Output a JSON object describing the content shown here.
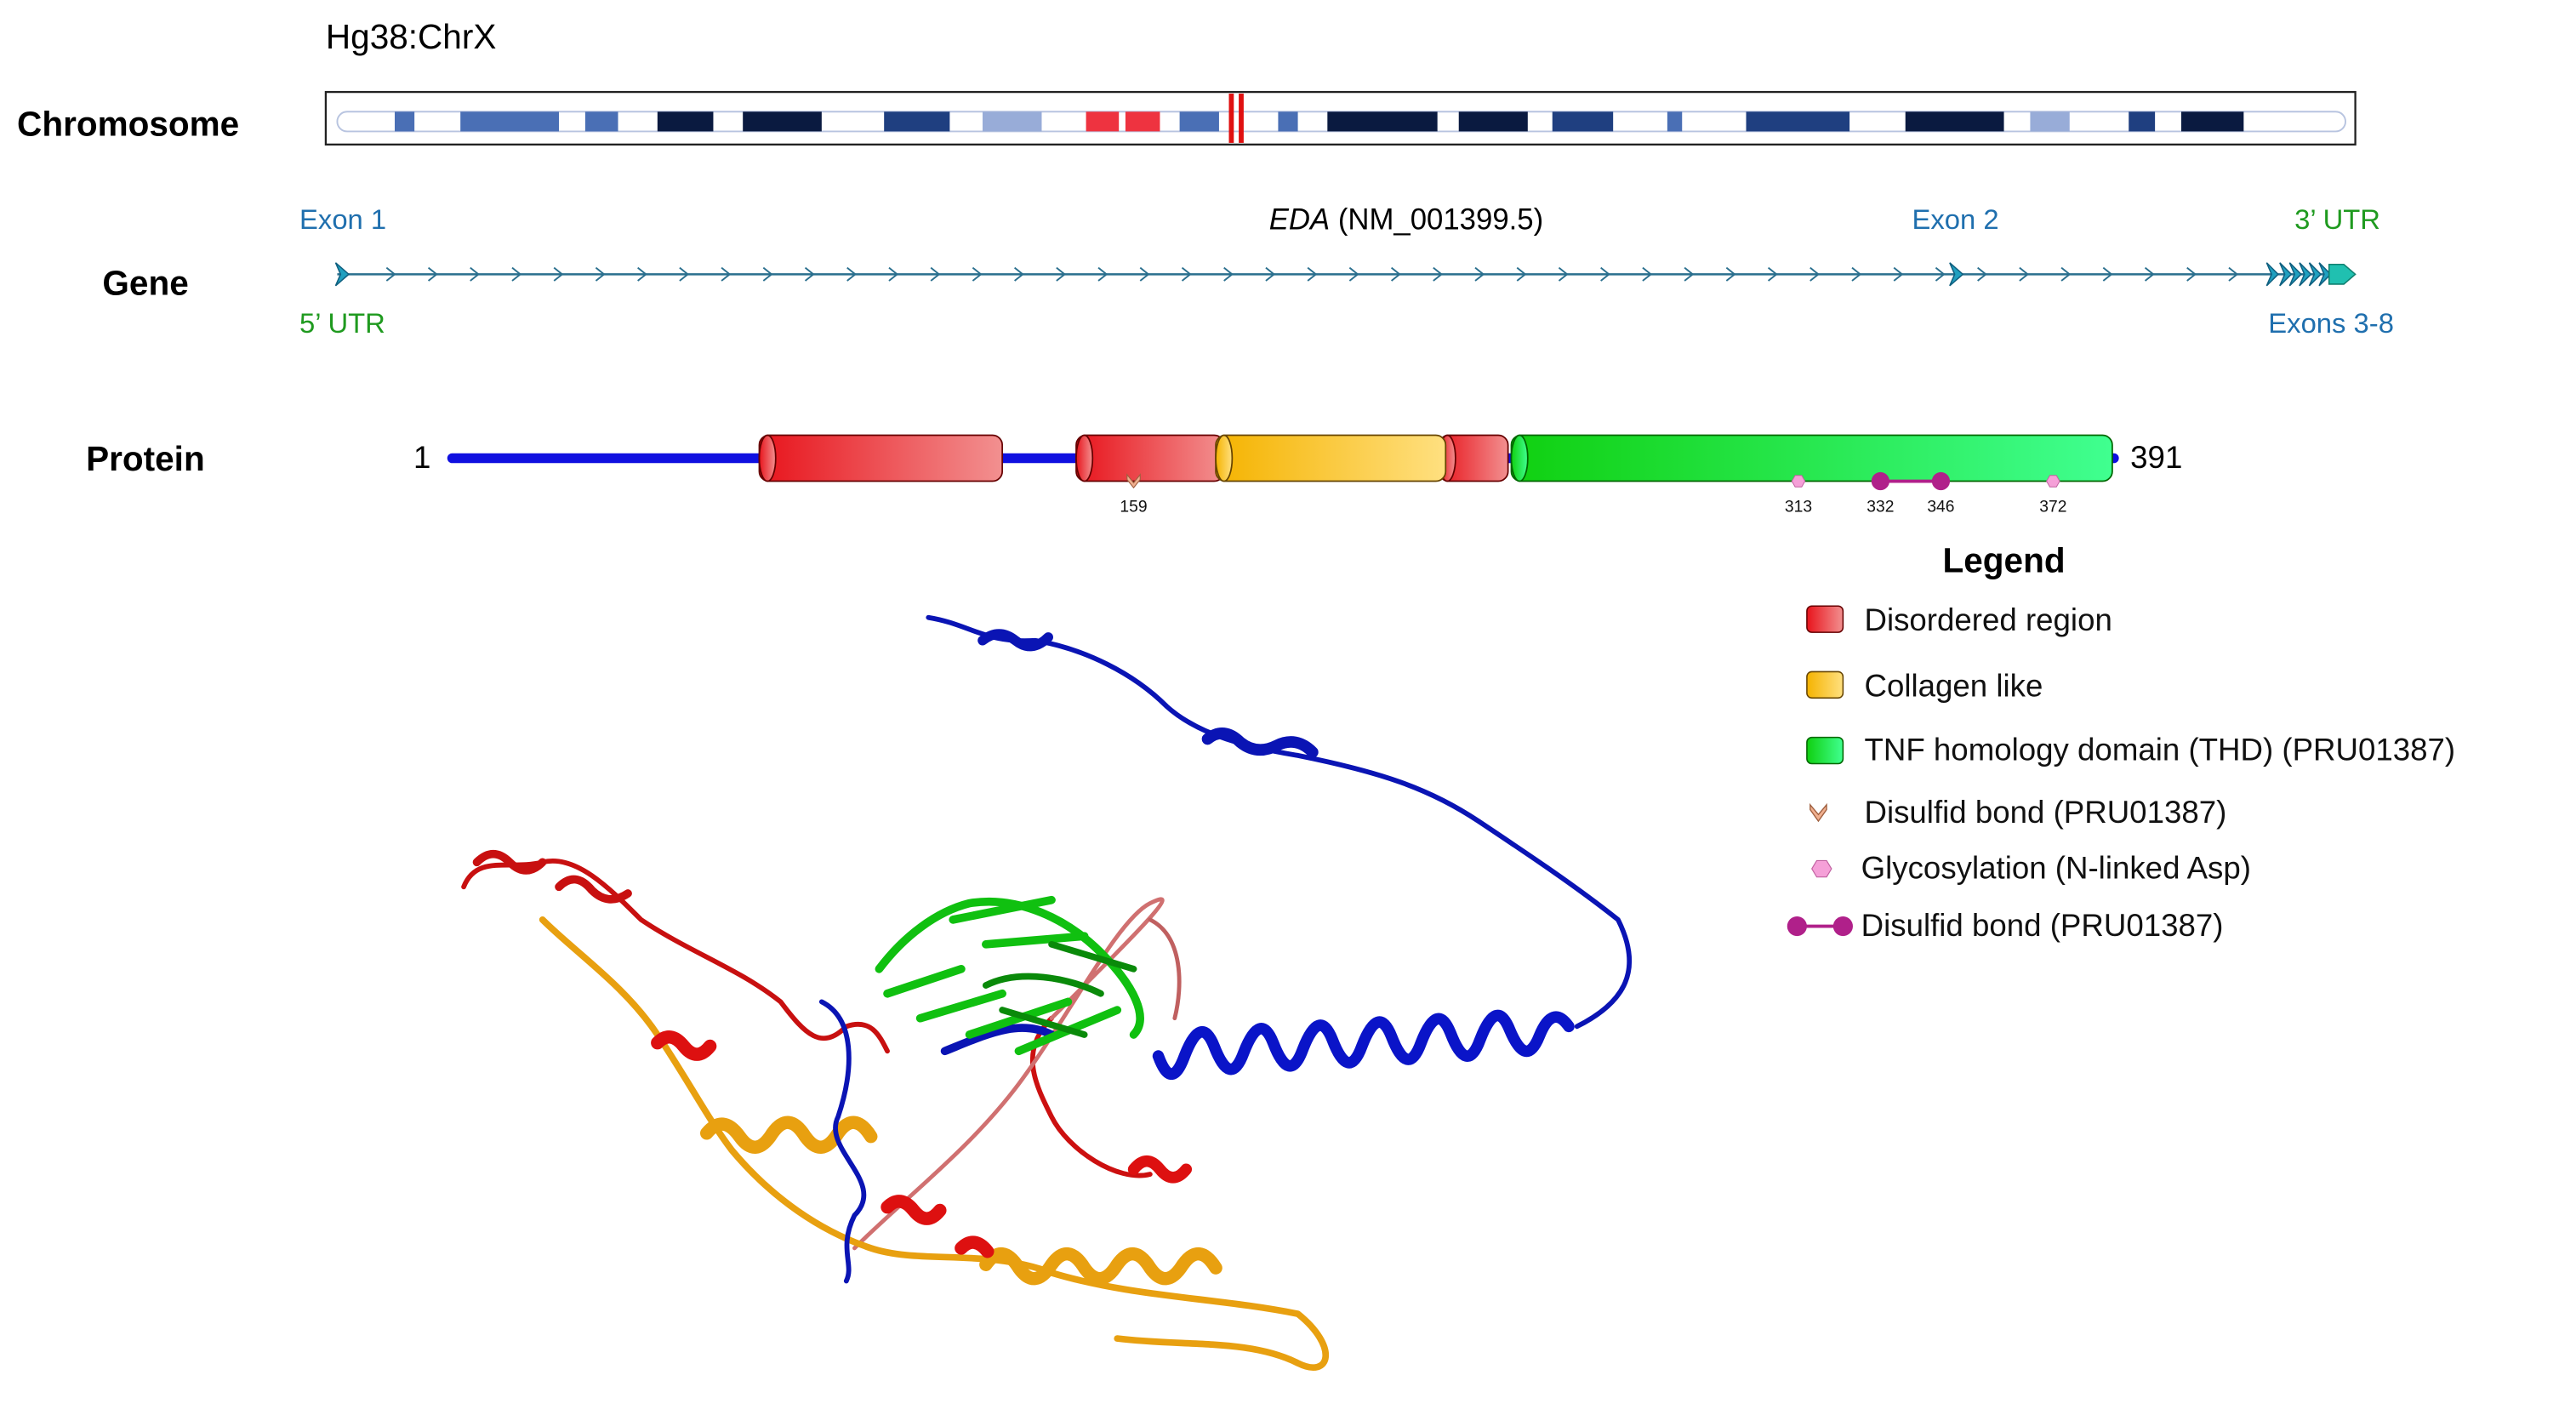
{
  "chromosome": {
    "assembly": "Hg38:ChrX",
    "label": "Chromosome"
  },
  "gene": {
    "label": "Gene",
    "symbol": "EDA",
    "accession": "(NM_001399.5)",
    "exon_first": "Exon 1",
    "exon_second": "Exon 2",
    "exons_rest": "Exons 3-8",
    "utr5": "5’ UTR",
    "utr3": "3’ UTR"
  },
  "protein": {
    "label": "Protein",
    "start": "1",
    "end": "391",
    "sites": [
      159,
      313,
      332,
      346,
      372
    ]
  },
  "legend": {
    "title": "Legend",
    "items": [
      "Disordered region",
      "Collagen like",
      "TNF homology domain (THD) (PRU01387)",
      "Disulfid bond (PRU01387)",
      "Glycosylation (N-linked Asp)",
      "Disulfid bond (PRU01387)"
    ]
  }
}
